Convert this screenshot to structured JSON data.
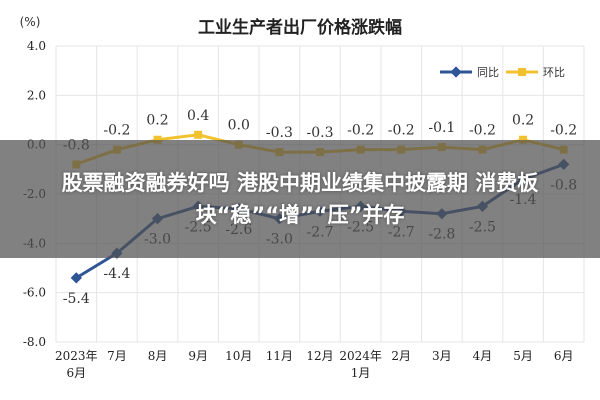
{
  "overlay_headline": "股票融资融券好吗 港股中期业绩集中披露期 消费板块“稳”“增”“压”并存",
  "colors": {
    "yoy": "#2f5597",
    "mom": "#f2c12e",
    "grid": "#e6e6e6",
    "background": "#ffffff"
  },
  "chart_data": {
    "type": "line",
    "title": "工业生产者出厂价格涨跌幅",
    "unit_label": "(%)",
    "ylim": [
      -8.0,
      4.0
    ],
    "yticks": [
      "4.0",
      "2.0",
      "0.0",
      "-2.0",
      "-4.0",
      "-6.0",
      "-8.0"
    ],
    "grid": true,
    "legend": "top-right",
    "categories": [
      [
        "2023年",
        "6月"
      ],
      [
        "7月"
      ],
      [
        "8月"
      ],
      [
        "9月"
      ],
      [
        "10月"
      ],
      [
        "11月"
      ],
      [
        "12月"
      ],
      [
        "2024年",
        "1月"
      ],
      [
        "2月"
      ],
      [
        "3月"
      ],
      [
        "4月"
      ],
      [
        "5月"
      ],
      [
        "6月"
      ]
    ],
    "series": [
      {
        "name": "同比",
        "color": "#2f5597",
        "values": [
          -5.4,
          -4.4,
          -3.0,
          -2.5,
          -2.6,
          -3.0,
          -2.7,
          -2.5,
          -2.7,
          -2.8,
          -2.5,
          -1.4,
          -0.8
        ],
        "labels": [
          "-5.4",
          "-4.4",
          "-3.0",
          "-2.5",
          "-2.6",
          "-3.0",
          "-2.7",
          "-2.5",
          "-2.7",
          "-2.8",
          "-2.5",
          "-1.4",
          "-0.8"
        ]
      },
      {
        "name": "环比",
        "color": "#f2c12e",
        "values": [
          -0.8,
          -0.2,
          0.2,
          0.4,
          0.0,
          -0.3,
          -0.3,
          -0.2,
          -0.2,
          -0.1,
          -0.2,
          0.2,
          -0.2
        ],
        "labels": [
          "-0.8",
          "-0.2",
          "0.2",
          "0.4",
          "0.0",
          "-0.3",
          "-0.3",
          "-0.2",
          "-0.2",
          "-0.1",
          "-0.2",
          "0.2",
          "-0.2"
        ]
      }
    ]
  }
}
